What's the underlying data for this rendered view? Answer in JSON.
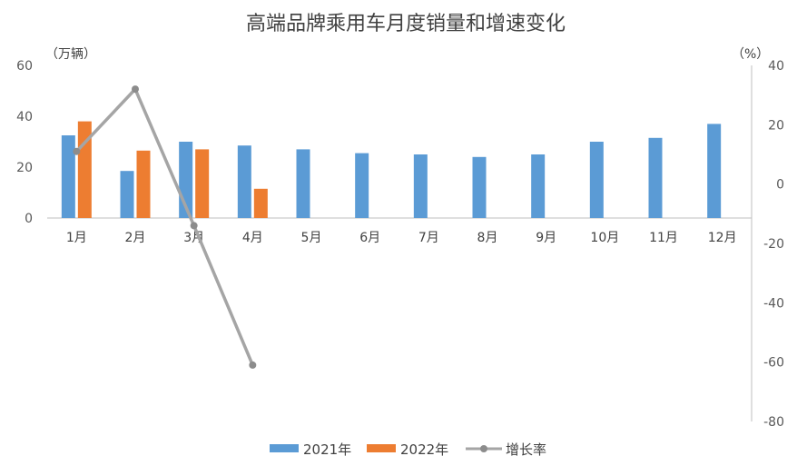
{
  "chart_data": {
    "type": "bar",
    "title": "高端品牌乘用车月度销量和增速变化",
    "left_axis_unit": "（万辆）",
    "right_axis_unit": "（%）",
    "categories": [
      "1月",
      "2月",
      "3月",
      "4月",
      "5月",
      "6月",
      "7月",
      "8月",
      "9月",
      "10月",
      "11月",
      "12月"
    ],
    "series": [
      {
        "name": "2021年",
        "kind": "bar",
        "axis": "left",
        "color": "#5B9BD5",
        "values": [
          32.5,
          18.5,
          30,
          28.5,
          27,
          25.5,
          25,
          24,
          25,
          30,
          31.5,
          37
        ]
      },
      {
        "name": "2022年",
        "kind": "bar",
        "axis": "left",
        "color": "#ED7D31",
        "values": [
          38,
          26.5,
          27,
          11.5,
          null,
          null,
          null,
          null,
          null,
          null,
          null,
          null
        ]
      },
      {
        "name": "增长率",
        "kind": "line",
        "axis": "right",
        "color": "#A5A5A5",
        "values": [
          11,
          32,
          -14,
          -61,
          null,
          null,
          null,
          null,
          null,
          null,
          null,
          null
        ]
      }
    ],
    "left_axis": {
      "ylim": [
        0,
        60
      ],
      "ticks": [
        0,
        20,
        40,
        60
      ],
      "tick_labels": [
        "0",
        "20",
        "40",
        "60"
      ]
    },
    "right_axis": {
      "ylim": [
        -80,
        40
      ],
      "ticks": [
        40,
        20,
        0,
        -20,
        -40,
        -60,
        -80
      ],
      "tick_labels": [
        "40",
        "20",
        "0",
        "-20",
        "-40",
        "-60",
        "-80"
      ]
    },
    "grid": false,
    "legend_position": "bottom"
  }
}
